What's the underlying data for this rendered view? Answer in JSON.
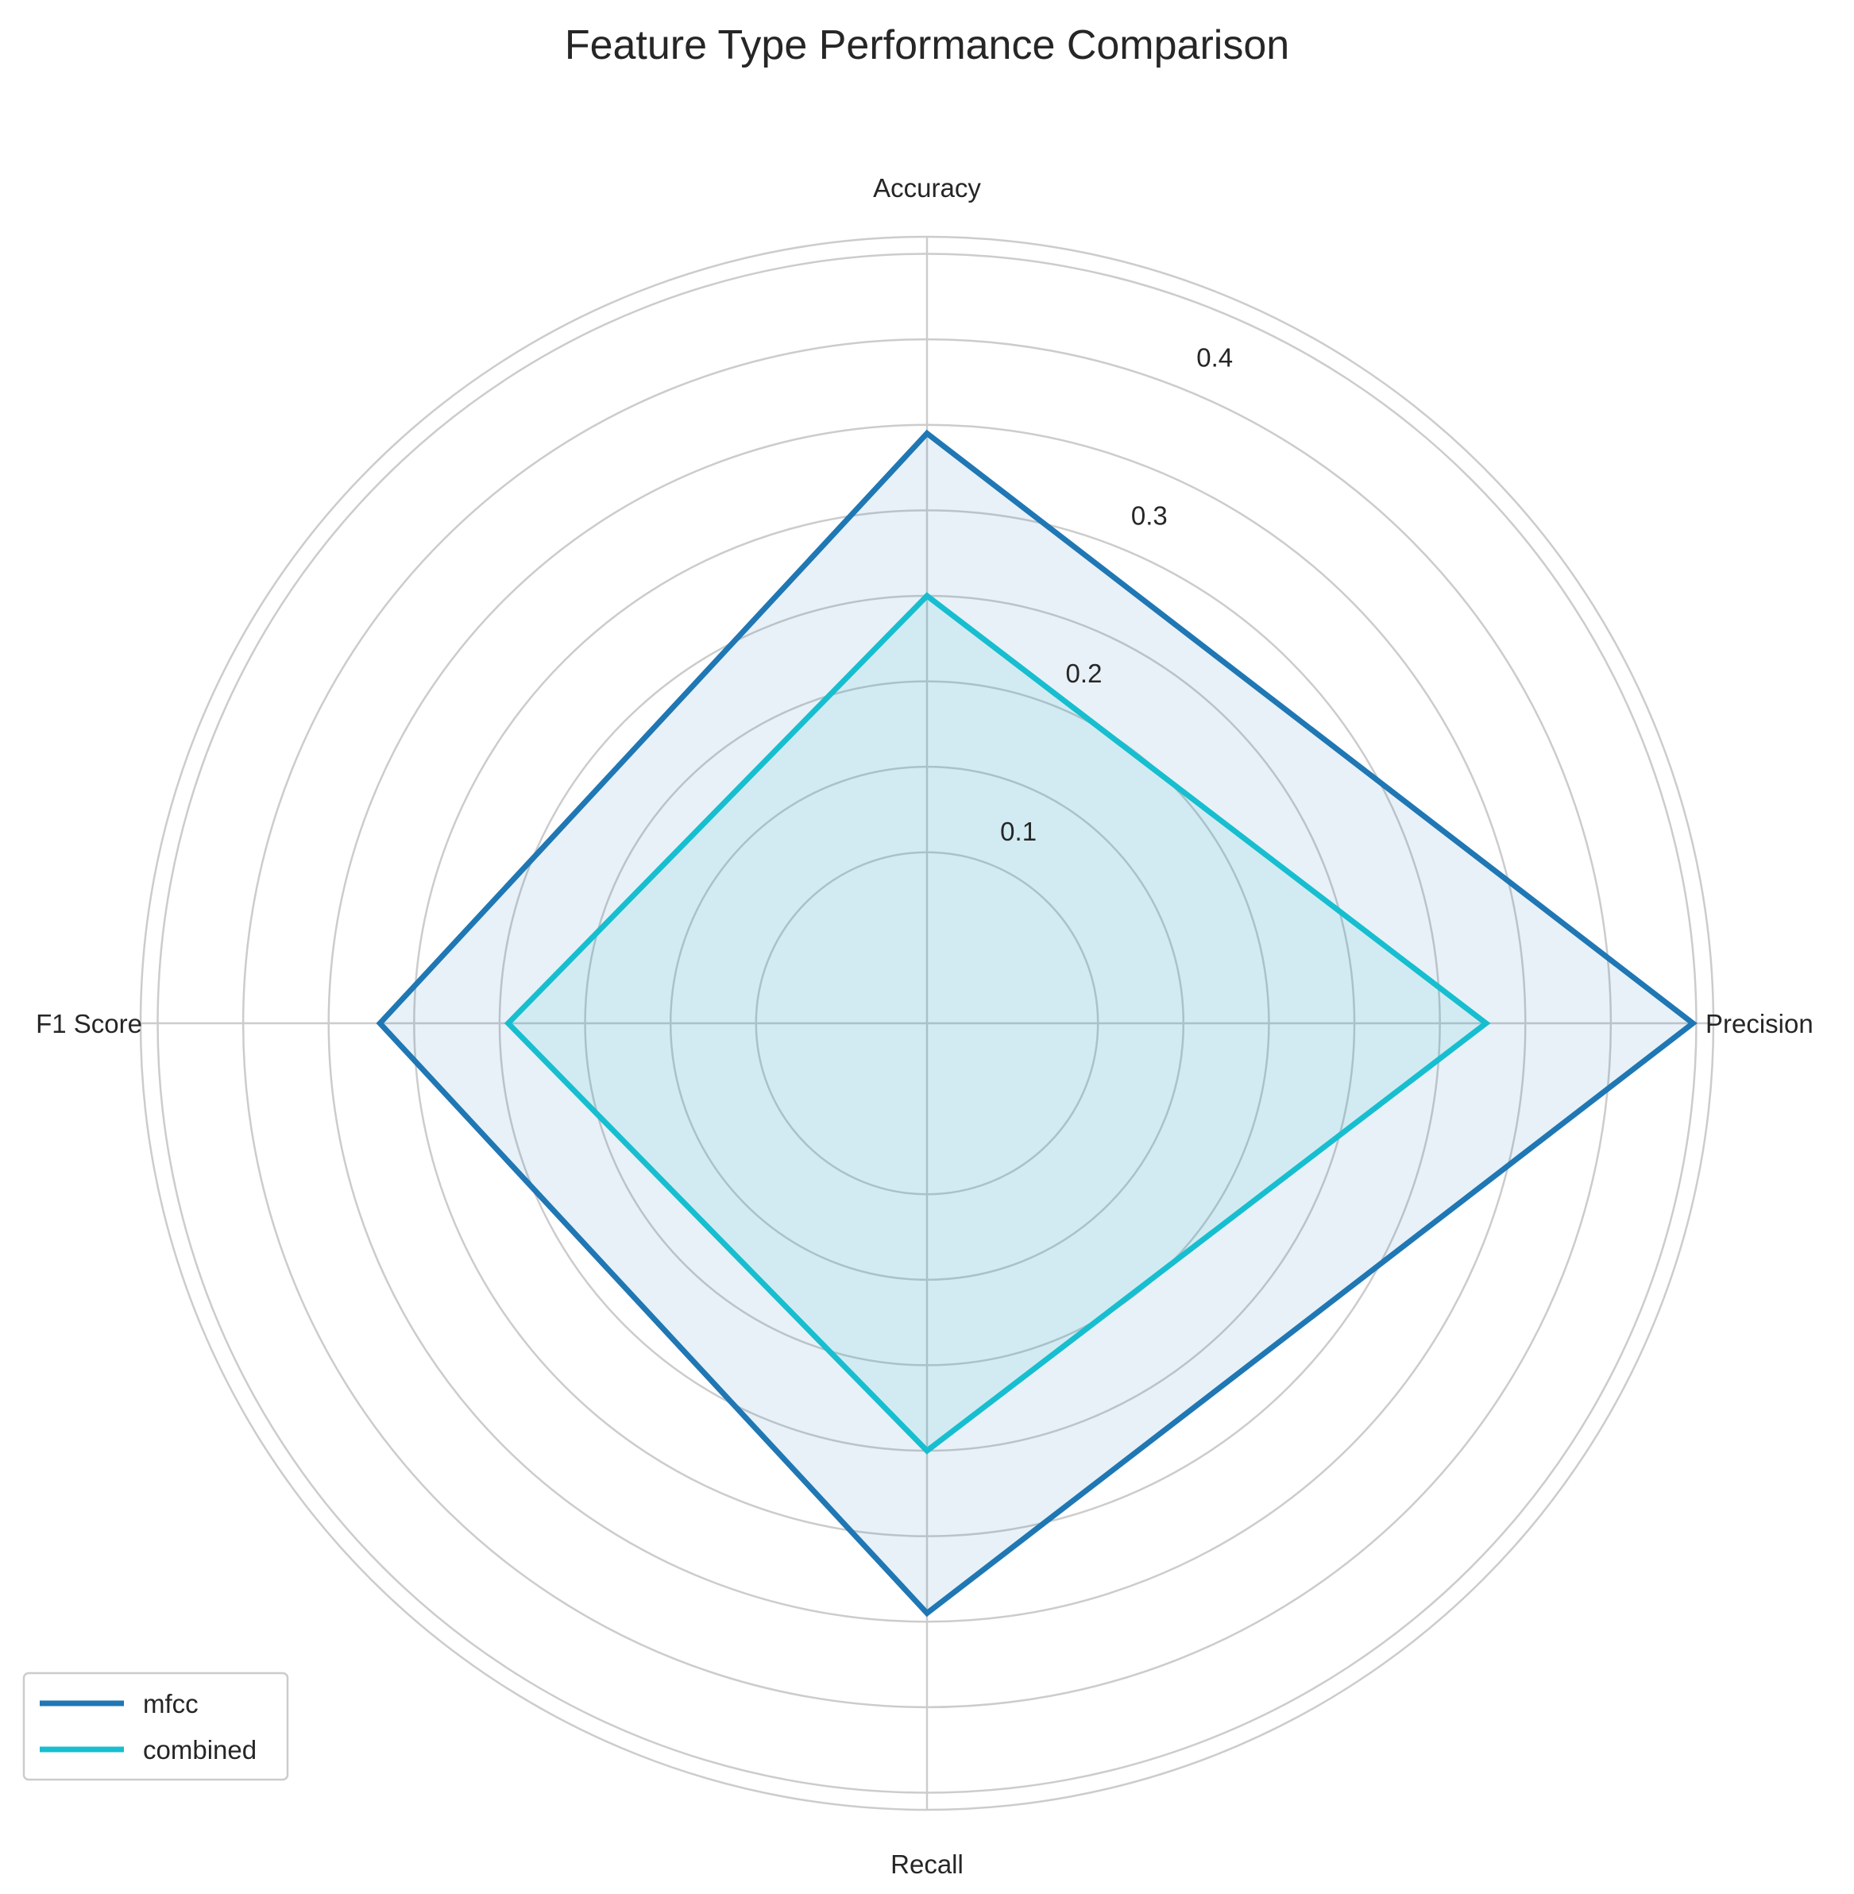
{
  "chart_data": {
    "type": "radar",
    "title": "Feature Type Performance Comparison",
    "categories": [
      "Accuracy",
      "Precision",
      "Recall",
      "F1 Score"
    ],
    "rlim": [
      0,
      0.46
    ],
    "rticks": [
      0.1,
      0.2,
      0.3,
      0.4
    ],
    "rtick_labels": [
      "0.1",
      "0.2",
      "0.3",
      "0.4"
    ],
    "grid": true,
    "legend_position": "lower-left",
    "series": [
      {
        "name": "mfcc",
        "color": "#1f77b4",
        "fill_opacity": 0.1,
        "values": [
          0.345,
          0.448,
          0.345,
          0.32
        ]
      },
      {
        "name": "combined",
        "color": "#17becf",
        "fill_opacity": 0.1,
        "values": [
          0.25,
          0.327,
          0.25,
          0.245
        ]
      }
    ]
  }
}
